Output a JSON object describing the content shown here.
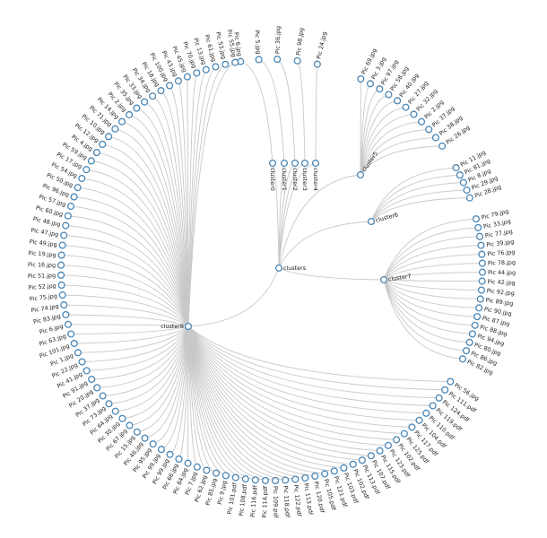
{
  "diagram": {
    "type": "radial-tree",
    "root": "clusters",
    "clusters": [
      {
        "name": "cluster0",
        "leaves": [
          "Pic 6.jpg"
        ]
      },
      {
        "name": "cluster1",
        "leaves": [
          "Pic 5.jpg"
        ]
      },
      {
        "name": "cluster2",
        "leaves": [
          "Pic 36.jpg"
        ]
      },
      {
        "name": "cluster3",
        "leaves": [
          "Pic 98.jpg"
        ]
      },
      {
        "name": "cluster4",
        "leaves": [
          "Pic 24.jpg"
        ]
      },
      {
        "name": "cluster5",
        "leaves": [
          "Pic 69.jpg",
          "Pic 3.jpg",
          "Pic 97.jpg",
          "Pic 58.jpg",
          "Pic 40.jpg",
          "Pic 27.jpg",
          "Pic 32.jpg",
          "Pic 2.jpg",
          "Pic 37.jpg",
          "Pic 38.jpg",
          "Pic 26.jpg"
        ]
      },
      {
        "name": "cluster6",
        "leaves": [
          "Pic 11.jpg",
          "Pic 81.jpg",
          "Pic 8.jpg",
          "Pic 29.jpg",
          "Pic 28.jpg"
        ]
      },
      {
        "name": "cluster7",
        "leaves": [
          "Pic 79.jpg",
          "Pic 33.jpg",
          "Pic 77.jpg",
          "Pic 39.jpg",
          "Pic 76.jpg",
          "Pic 78.jpg",
          "Pic 44.jpg",
          "Pic 42.jpg",
          "Pic 92.jpg",
          "Pic 89.jpg",
          "Pic 90.jpg",
          "Pic 87.jpg",
          "Pic 88.jpg",
          "Pic 94.jpg",
          "Pic 80.jpg",
          "Pic 86.jpg",
          "Pic 82.jpg"
        ]
      },
      {
        "name": "cluster8",
        "leaves": [
          "Pic 56.jpg",
          "Pic 111.pdf",
          "Pic 124.pdf",
          "Pic 119.pdf",
          "Pic 110.pdf",
          "Pic 104.pdf",
          "Pic 117.pdf",
          "Pic 125.pdf",
          "Pic 102.pdf",
          "Pic 123.pdf",
          "Pic 115.pdf",
          "Pic 107.pdf",
          "Pic 113.pdf",
          "Pic 102.pdf",
          "Pic 103.pdf",
          "Pic 121.pdf",
          "Pic 105.pdf",
          "Pic 120.pdf",
          "Pic 113.pdf",
          "Pic 122.pdf",
          "Pic 118.pdf",
          "Pic 109.pdf",
          "Pic 114.pdf",
          "Pic 116.pdf",
          "Pic 108.pdf",
          "Pic 101.pdf",
          "Pic 9.jpg",
          "Pic 85.jpg",
          "Pic 62.jpg",
          "Pic 7.jpg",
          "Pic 84.jpg",
          "Pic 66.jpg",
          "Pic 99.jpg",
          "Pic 99.jpg",
          "Pic 95.jpg",
          "Pic 46.jpg",
          "Pic 15.jpg",
          "Pic 67.jpg",
          "Pic 30.jpg",
          "Pic 64.jpg",
          "Pic 73.jpg",
          "Pic 37.jpg",
          "Pic 20.jpg",
          "Pic 91.jpg",
          "Pic 41.jpg",
          "Pic 22.jpg",
          "Pic 1.jpg",
          "Pic 101.jpg",
          "Pic 63.jpg",
          "Pic 6.jpg",
          "Pic 83.jpg",
          "Pic 74.jpg",
          "Pic 75.jpg",
          "Pic 52.jpg",
          "Pic 51.jpg",
          "Pic 16.jpg",
          "Pic 19.jpg",
          "Pic 49.jpg",
          "Pic 47.jpg",
          "Pic 48.jpg",
          "Pic 60.jpg",
          "Pic 57.jpg",
          "Pic 96.jpg",
          "Pic 50.jpg",
          "Pic 54.jpg",
          "Pic 17.jpg",
          "Pic 59.jpg",
          "Pic 4.jpg",
          "Pic 12.jpg",
          "Pic 10.jpg",
          "Pic 71.jpg",
          "Pic 14.jpg",
          "Pic 2.jpg",
          "Pic 35.jpg",
          "Pic 33.jpg",
          "Pic 34.jpg",
          "Pic 18.jpg",
          "Pic 100.jpg",
          "Pic 43.jpg",
          "Pic 45.jpg",
          "Pic 70.jpg",
          "Pic 13.jpg",
          "Pic 61.jpg",
          "Pic 53.jpg",
          "Pic 55.jpg"
        ]
      }
    ]
  },
  "colors": {
    "link": "#c8c8c8",
    "node_stroke": "#4a86b5",
    "node_fill": "#ffffff",
    "label": "#222222"
  }
}
